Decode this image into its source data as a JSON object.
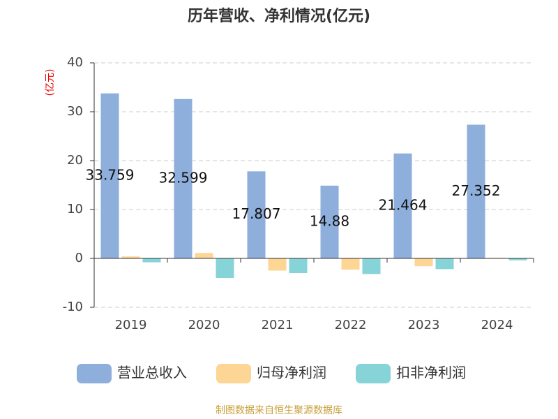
{
  "chart_data": {
    "type": "bar",
    "title": "历年营收、净利情况(亿元)",
    "y_unit": "(亿元)",
    "categories": [
      "2019",
      "2020",
      "2021",
      "2022",
      "2023",
      "2024"
    ],
    "series": [
      {
        "name": "营业总收入",
        "color": "#8eaedb",
        "values": [
          33.759,
          32.599,
          17.807,
          14.88,
          21.464,
          27.352
        ],
        "show_labels": true
      },
      {
        "name": "归母净利润",
        "color": "#fdd594",
        "values": [
          0.4,
          1.1,
          -2.5,
          -2.3,
          -1.6,
          0.1
        ]
      },
      {
        "name": "扣非净利润",
        "color": "#86d4d8",
        "values": [
          -0.8,
          -4.0,
          -3.0,
          -3.2,
          -2.2,
          -0.4
        ]
      }
    ],
    "ylim": [
      -10,
      40
    ],
    "yticks": [
      -10,
      0,
      10,
      20,
      30,
      40
    ],
    "grid": true,
    "source": "制图数据来自恒生聚源数据库"
  }
}
